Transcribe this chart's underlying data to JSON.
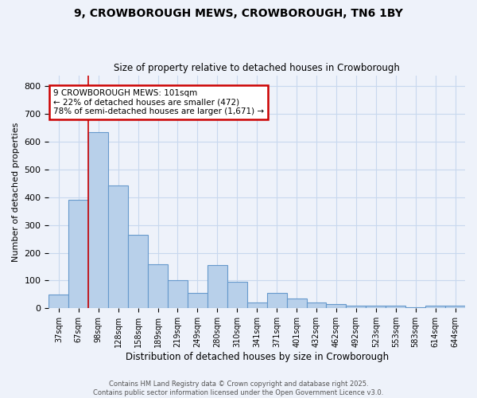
{
  "title_line1": "9, CROWBOROUGH MEWS, CROWBOROUGH, TN6 1BY",
  "title_line2": "Size of property relative to detached houses in Crowborough",
  "xlabel": "Distribution of detached houses by size in Crowborough",
  "ylabel": "Number of detached properties",
  "categories": [
    "37sqm",
    "67sqm",
    "98sqm",
    "128sqm",
    "158sqm",
    "189sqm",
    "219sqm",
    "249sqm",
    "280sqm",
    "310sqm",
    "341sqm",
    "371sqm",
    "401sqm",
    "432sqm",
    "462sqm",
    "492sqm",
    "523sqm",
    "553sqm",
    "583sqm",
    "614sqm",
    "644sqm"
  ],
  "values": [
    50,
    390,
    635,
    443,
    265,
    158,
    100,
    55,
    155,
    95,
    20,
    55,
    35,
    20,
    15,
    10,
    10,
    10,
    5,
    10,
    10
  ],
  "bar_color": "#b8d0ea",
  "bar_edge_color": "#6699cc",
  "grid_color": "#c8d8ee",
  "vline_color": "#cc0000",
  "annotation_text": "9 CROWBOROUGH MEWS: 101sqm\n← 22% of detached houses are smaller (472)\n78% of semi-detached houses are larger (1,671) →",
  "annotation_box_color": "white",
  "annotation_box_edge": "#cc0000",
  "ylim": [
    0,
    840
  ],
  "yticks": [
    0,
    100,
    200,
    300,
    400,
    500,
    600,
    700,
    800
  ],
  "footer": "Contains HM Land Registry data © Crown copyright and database right 2025.\nContains public sector information licensed under the Open Government Licence v3.0.",
  "bg_color": "#eef2fa"
}
